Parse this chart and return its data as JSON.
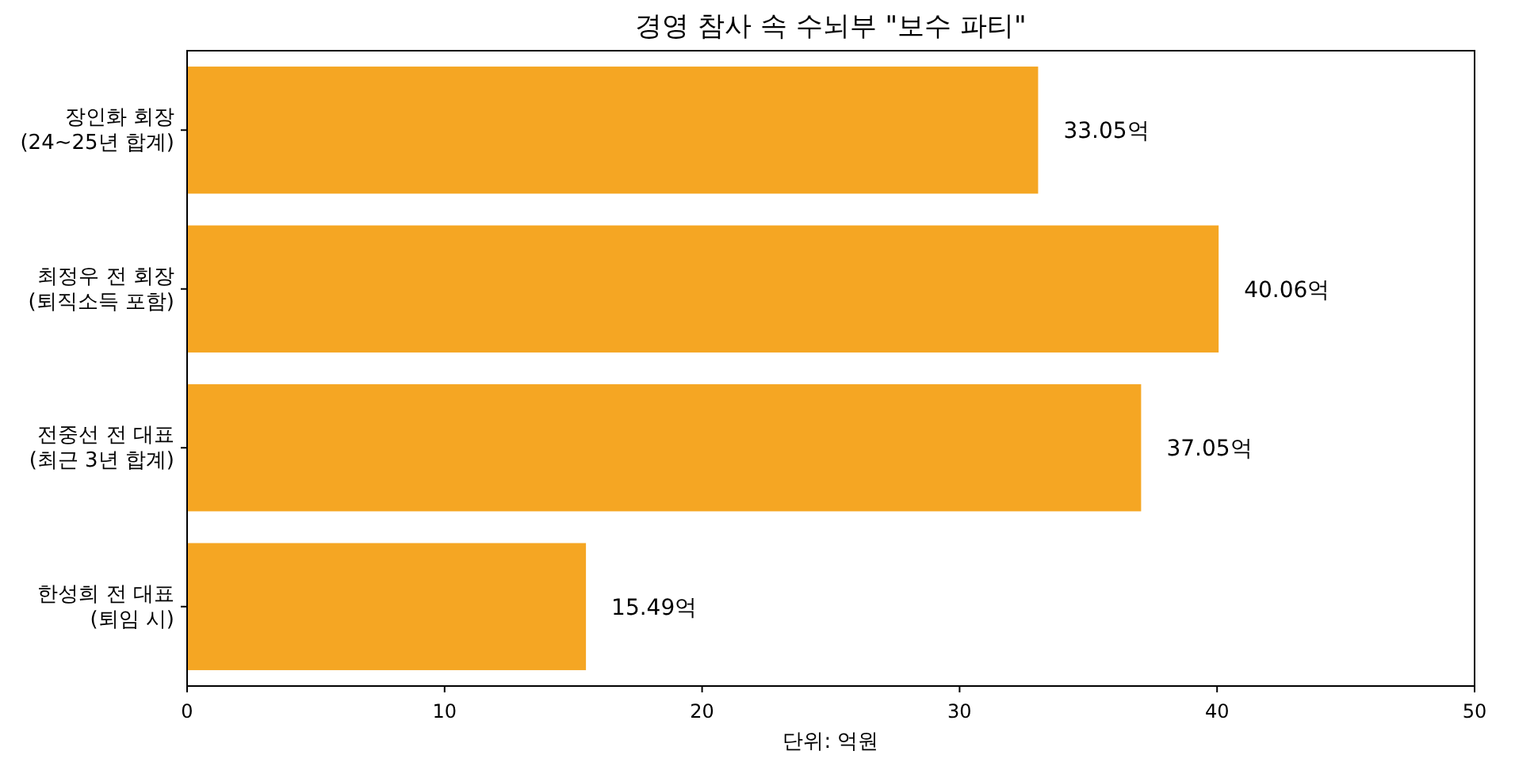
{
  "chart_data": {
    "type": "bar",
    "orientation": "horizontal",
    "title": "경영 참사 속 수뇌부 \"보수 파티\"",
    "xlabel": "단위: 억원",
    "categories": [
      "장인화 회장\n(24~25년 합계)",
      "최정우 전 회장\n(퇴직소득 포함)",
      "전중선 전 대표\n(최근 3년 합계)",
      "한성희 전 대표\n(퇴임 시)"
    ],
    "values": [
      33.05,
      40.06,
      37.05,
      15.49
    ],
    "value_labels": [
      "33.05억",
      "40.06억",
      "37.05억",
      "15.49억"
    ],
    "color": "#f5a623",
    "xlim": [
      0,
      50
    ],
    "xticks": [
      0,
      10,
      20,
      30,
      40,
      50
    ]
  }
}
